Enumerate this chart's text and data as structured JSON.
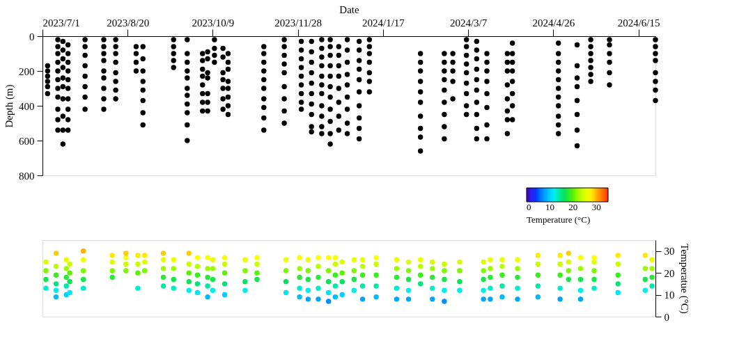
{
  "chart_data": [
    {
      "type": "scatter",
      "xlabel": "Date",
      "ylabel": "Depth (m)",
      "grid": false,
      "xlim": [
        "2023-07-01",
        "2024-06-25"
      ],
      "xticks": [
        {
          "value": "2023-07-01",
          "label": "2023/7/1"
        },
        {
          "value": "2023-08-20",
          "label": "2023/8/20"
        },
        {
          "value": "2023-10-09",
          "label": "2023/10/9"
        },
        {
          "value": "2023-11-28",
          "label": "2023/11/28"
        },
        {
          "value": "2024-01-17",
          "label": "2024/1/17"
        },
        {
          "value": "2024-03-07",
          "label": "2024/3/7"
        },
        {
          "value": "2024-04-26",
          "label": "2024/4/26"
        },
        {
          "value": "2024-06-15",
          "label": "2024/6/15"
        }
      ],
      "ylim": [
        800,
        0
      ],
      "yticks": [
        0,
        200,
        400,
        600,
        800
      ],
      "series": [
        {
          "color": "#000000",
          "x": [
            "2023-07-04",
            "2023-07-04",
            "2023-07-04",
            "2023-07-04",
            "2023-07-04",
            "2023-07-04",
            "2023-07-10",
            "2023-07-10",
            "2023-07-10",
            "2023-07-10",
            "2023-07-10",
            "2023-07-10",
            "2023-07-10",
            "2023-07-10",
            "2023-07-10",
            "2023-07-10",
            "2023-07-10",
            "2023-07-13",
            "2023-07-13",
            "2023-07-13",
            "2023-07-13",
            "2023-07-13",
            "2023-07-13",
            "2023-07-13",
            "2023-07-13",
            "2023-07-13",
            "2023-07-13",
            "2023-07-16",
            "2023-07-16",
            "2023-07-16",
            "2023-07-16",
            "2023-07-16",
            "2023-07-16",
            "2023-07-16",
            "2023-07-16",
            "2023-07-16",
            "2023-07-16",
            "2023-07-26",
            "2023-07-26",
            "2023-07-26",
            "2023-07-26",
            "2023-07-26",
            "2023-07-26",
            "2023-07-26",
            "2023-07-26",
            "2023-08-06",
            "2023-08-06",
            "2023-08-06",
            "2023-08-06",
            "2023-08-06",
            "2023-08-06",
            "2023-08-06",
            "2023-08-06",
            "2023-08-06",
            "2023-08-13",
            "2023-08-13",
            "2023-08-13",
            "2023-08-13",
            "2023-08-13",
            "2023-08-13",
            "2023-08-13",
            "2023-08-13",
            "2023-08-25",
            "2023-08-25",
            "2023-08-25",
            "2023-08-25",
            "2023-08-29",
            "2023-08-29",
            "2023-08-29",
            "2023-08-29",
            "2023-08-29",
            "2023-08-29",
            "2023-08-29",
            "2023-08-29",
            "2023-09-16",
            "2023-09-16",
            "2023-09-16",
            "2023-09-16",
            "2023-09-16",
            "2023-09-24",
            "2023-09-24",
            "2023-09-24",
            "2023-09-24",
            "2023-09-24",
            "2023-09-24",
            "2023-09-24",
            "2023-09-24",
            "2023-09-24",
            "2023-09-24",
            "2023-09-24",
            "2023-10-03",
            "2023-10-03",
            "2023-10-03",
            "2023-10-03",
            "2023-10-03",
            "2023-10-03",
            "2023-10-03",
            "2023-10-03",
            "2023-10-06",
            "2023-10-06",
            "2023-10-06",
            "2023-10-06",
            "2023-10-06",
            "2023-10-06",
            "2023-10-06",
            "2023-10-10",
            "2023-10-10",
            "2023-10-10",
            "2023-10-10",
            "2023-10-15",
            "2023-10-15",
            "2023-10-15",
            "2023-10-15",
            "2023-10-15",
            "2023-10-15",
            "2023-10-15",
            "2023-10-18",
            "2023-10-18",
            "2023-10-18",
            "2023-10-18",
            "2023-10-18",
            "2023-10-18",
            "2023-10-18",
            "2023-10-18",
            "2023-11-08",
            "2023-11-08",
            "2023-11-08",
            "2023-11-08",
            "2023-11-08",
            "2023-11-08",
            "2023-11-08",
            "2023-11-08",
            "2023-11-08",
            "2023-11-08",
            "2023-11-20",
            "2023-11-20",
            "2023-11-20",
            "2023-11-20",
            "2023-11-20",
            "2023-11-20",
            "2023-11-20",
            "2023-11-20",
            "2023-11-20",
            "2023-11-30",
            "2023-11-30",
            "2023-11-30",
            "2023-11-30",
            "2023-11-30",
            "2023-11-30",
            "2023-11-30",
            "2023-11-30",
            "2023-11-30",
            "2023-12-06",
            "2023-12-06",
            "2023-12-06",
            "2023-12-06",
            "2023-12-06",
            "2023-12-06",
            "2023-12-06",
            "2023-12-06",
            "2023-12-06",
            "2023-12-06",
            "2023-12-12",
            "2023-12-12",
            "2023-12-12",
            "2023-12-12",
            "2023-12-12",
            "2023-12-12",
            "2023-12-12",
            "2023-12-12",
            "2023-12-12",
            "2023-12-12",
            "2023-12-12",
            "2023-12-17",
            "2023-12-17",
            "2023-12-17",
            "2023-12-17",
            "2023-12-17",
            "2023-12-17",
            "2023-12-17",
            "2023-12-17",
            "2023-12-17",
            "2023-12-17",
            "2023-12-17",
            "2023-12-22",
            "2023-12-22",
            "2023-12-22",
            "2023-12-22",
            "2023-12-22",
            "2023-12-22",
            "2023-12-22",
            "2023-12-22",
            "2023-12-27",
            "2023-12-27",
            "2023-12-27",
            "2023-12-27",
            "2023-12-27",
            "2023-12-27",
            "2023-12-27",
            "2023-12-27",
            "2023-12-27",
            "2024-01-03",
            "2024-01-03",
            "2024-01-03",
            "2024-01-03",
            "2024-01-03",
            "2024-01-03",
            "2024-01-03",
            "2024-01-03",
            "2024-01-03",
            "2024-01-03",
            "2024-01-09",
            "2024-01-09",
            "2024-01-09",
            "2024-01-09",
            "2024-01-09",
            "2024-01-09",
            "2024-01-09",
            "2024-02-08",
            "2024-02-08",
            "2024-02-08",
            "2024-02-08",
            "2024-02-08",
            "2024-02-08",
            "2024-02-08",
            "2024-02-08",
            "2024-02-08",
            "2024-02-08",
            "2024-02-22",
            "2024-02-22",
            "2024-02-22",
            "2024-02-22",
            "2024-02-22",
            "2024-02-22",
            "2024-02-22",
            "2024-02-22",
            "2024-02-22",
            "2024-02-27",
            "2024-02-27",
            "2024-02-27",
            "2024-02-27",
            "2024-02-27",
            "2024-03-06",
            "2024-03-06",
            "2024-03-06",
            "2024-03-06",
            "2024-03-06",
            "2024-03-06",
            "2024-03-06",
            "2024-03-06",
            "2024-03-06",
            "2024-03-12",
            "2024-03-12",
            "2024-03-12",
            "2024-03-12",
            "2024-03-12",
            "2024-03-12",
            "2024-03-12",
            "2024-03-12",
            "2024-03-12",
            "2024-03-12",
            "2024-03-18",
            "2024-03-18",
            "2024-03-18",
            "2024-03-18",
            "2024-03-18",
            "2024-03-18",
            "2024-03-18",
            "2024-03-18",
            "2024-03-30",
            "2024-03-30",
            "2024-03-30",
            "2024-03-30",
            "2024-03-30",
            "2024-03-30",
            "2024-03-30",
            "2024-03-30",
            "2024-04-02",
            "2024-04-02",
            "2024-04-02",
            "2024-04-02",
            "2024-04-02",
            "2024-04-02",
            "2024-04-02",
            "2024-04-02",
            "2024-04-29",
            "2024-04-29",
            "2024-04-29",
            "2024-04-29",
            "2024-04-29",
            "2024-04-29",
            "2024-04-29",
            "2024-04-29",
            "2024-04-29",
            "2024-04-29",
            "2024-04-29",
            "2024-05-10",
            "2024-05-10",
            "2024-05-10",
            "2024-05-10",
            "2024-05-10",
            "2024-05-10",
            "2024-05-10",
            "2024-05-10",
            "2024-05-18",
            "2024-05-18",
            "2024-05-18",
            "2024-05-18",
            "2024-05-18",
            "2024-05-18",
            "2024-05-18",
            "2024-05-29",
            "2024-05-29",
            "2024-05-29",
            "2024-05-29",
            "2024-05-29",
            "2024-05-29",
            "2024-06-25",
            "2024-06-25",
            "2024-06-25",
            "2024-06-25",
            "2024-06-25",
            "2024-06-25",
            "2024-06-25",
            "2024-06-25"
          ],
          "values": [
            170,
            200,
            230,
            260,
            290,
            330,
            20,
            60,
            100,
            150,
            200,
            250,
            300,
            350,
            420,
            480,
            540,
            30,
            80,
            130,
            180,
            240,
            290,
            360,
            460,
            540,
            620,
            50,
            100,
            150,
            200,
            250,
            300,
            360,
            420,
            480,
            540,
            20,
            60,
            110,
            170,
            230,
            290,
            350,
            420,
            20,
            60,
            100,
            140,
            200,
            240,
            300,
            360,
            420,
            20,
            60,
            100,
            150,
            210,
            260,
            310,
            360,
            60,
            100,
            150,
            200,
            60,
            130,
            200,
            260,
            310,
            370,
            440,
            510,
            20,
            60,
            100,
            140,
            180,
            20,
            100,
            150,
            200,
            240,
            300,
            340,
            390,
            440,
            510,
            600,
            100,
            140,
            190,
            230,
            280,
            330,
            380,
            430,
            90,
            130,
            210,
            240,
            330,
            380,
            430,
            20,
            70,
            110,
            150,
            70,
            120,
            210,
            250,
            300,
            360,
            420,
            100,
            150,
            190,
            260,
            300,
            350,
            400,
            450,
            60,
            100,
            150,
            200,
            250,
            300,
            360,
            410,
            470,
            540,
            20,
            60,
            110,
            160,
            210,
            290,
            360,
            430,
            500,
            30,
            80,
            130,
            180,
            230,
            280,
            330,
            380,
            420,
            30,
            90,
            150,
            210,
            270,
            330,
            390,
            450,
            520,
            550,
            20,
            70,
            120,
            170,
            230,
            280,
            330,
            400,
            460,
            520,
            560,
            20,
            60,
            110,
            170,
            230,
            290,
            350,
            420,
            490,
            560,
            620,
            60,
            110,
            170,
            230,
            300,
            380,
            460,
            540,
            20,
            80,
            150,
            220,
            280,
            350,
            420,
            500,
            560,
            30,
            80,
            140,
            190,
            250,
            320,
            400,
            470,
            530,
            590,
            20,
            60,
            100,
            150,
            210,
            260,
            320,
            100,
            150,
            200,
            260,
            320,
            380,
            460,
            530,
            580,
            660,
            100,
            150,
            200,
            250,
            310,
            380,
            450,
            520,
            590,
            100,
            150,
            200,
            260,
            360,
            20,
            60,
            110,
            160,
            210,
            270,
            330,
            400,
            450,
            30,
            80,
            130,
            190,
            250,
            310,
            380,
            450,
            530,
            590,
            100,
            150,
            200,
            260,
            330,
            410,
            510,
            590,
            100,
            150,
            200,
            280,
            360,
            430,
            480,
            560,
            40,
            100,
            150,
            200,
            260,
            330,
            400,
            480,
            40,
            100,
            150,
            200,
            250,
            300,
            350,
            400,
            460,
            510,
            560,
            50,
            170,
            240,
            290,
            370,
            450,
            540,
            630,
            20,
            60,
            100,
            140,
            180,
            220,
            260,
            20,
            50,
            100,
            150,
            210,
            280,
            20,
            60,
            100,
            140,
            210,
            260,
            310,
            370
          ]
        }
      ]
    },
    {
      "type": "scatter",
      "ylabel": "Temperatue (°C)",
      "clabel": "Temperature (°C)",
      "grid": false,
      "tick_labels": "y",
      "xlim": [
        "2023-07-01",
        "2024-06-25"
      ],
      "ylim": [
        0,
        35
      ],
      "yticks": [
        0,
        10,
        20,
        30
      ],
      "clim": [
        0,
        35
      ],
      "cticks": [
        0,
        10,
        20,
        30
      ],
      "series": [
        {
          "x": [
            "2023-07-03",
            "2023-07-03",
            "2023-07-03",
            "2023-07-03",
            "2023-07-09",
            "2023-07-09",
            "2023-07-09",
            "2023-07-09",
            "2023-07-09",
            "2023-07-09",
            "2023-07-15",
            "2023-07-15",
            "2023-07-15",
            "2023-07-15",
            "2023-07-15",
            "2023-07-17",
            "2023-07-17",
            "2023-07-17",
            "2023-07-17",
            "2023-07-25",
            "2023-07-25",
            "2023-07-25",
            "2023-07-25",
            "2023-07-25",
            "2023-08-11",
            "2023-08-11",
            "2023-08-11",
            "2023-08-11",
            "2023-08-19",
            "2023-08-19",
            "2023-08-19",
            "2023-08-19",
            "2023-08-26",
            "2023-08-26",
            "2023-08-26",
            "2023-08-26",
            "2023-08-30",
            "2023-08-30",
            "2023-08-30",
            "2023-09-10",
            "2023-09-10",
            "2023-09-10",
            "2023-09-10",
            "2023-09-10",
            "2023-09-16",
            "2023-09-16",
            "2023-09-16",
            "2023-09-16",
            "2023-09-25",
            "2023-09-25",
            "2023-09-25",
            "2023-09-25",
            "2023-09-25",
            "2023-09-30",
            "2023-09-30",
            "2023-09-30",
            "2023-09-30",
            "2023-09-30",
            "2023-10-06",
            "2023-10-06",
            "2023-10-06",
            "2023-10-06",
            "2023-10-06",
            "2023-10-09",
            "2023-10-09",
            "2023-10-09",
            "2023-10-09",
            "2023-10-16",
            "2023-10-16",
            "2023-10-16",
            "2023-10-16",
            "2023-10-16",
            "2023-10-28",
            "2023-10-28",
            "2023-10-28",
            "2023-10-28",
            "2023-11-04",
            "2023-11-04",
            "2023-11-04",
            "2023-11-04",
            "2023-11-21",
            "2023-11-21",
            "2023-11-21",
            "2023-11-21",
            "2023-11-29",
            "2023-11-29",
            "2023-11-29",
            "2023-11-29",
            "2023-11-29",
            "2023-12-04",
            "2023-12-04",
            "2023-12-04",
            "2023-12-04",
            "2023-12-04",
            "2023-12-10",
            "2023-12-10",
            "2023-12-10",
            "2023-12-10",
            "2023-12-10",
            "2023-12-16",
            "2023-12-16",
            "2023-12-16",
            "2023-12-16",
            "2023-12-16",
            "2023-12-20",
            "2023-12-20",
            "2023-12-20",
            "2023-12-20",
            "2023-12-20",
            "2023-12-24",
            "2023-12-24",
            "2023-12-24",
            "2023-12-24",
            "2023-12-31",
            "2023-12-31",
            "2023-12-31",
            "2023-12-31",
            "2024-01-05",
            "2024-01-05",
            "2024-01-05",
            "2024-01-05",
            "2024-01-05",
            "2024-01-13",
            "2024-01-13",
            "2024-01-13",
            "2024-01-13",
            "2024-01-13",
            "2024-01-25",
            "2024-01-25",
            "2024-01-25",
            "2024-01-25",
            "2024-01-25",
            "2024-02-01",
            "2024-02-01",
            "2024-02-01",
            "2024-02-01",
            "2024-02-01",
            "2024-02-08",
            "2024-02-08",
            "2024-02-08",
            "2024-02-08",
            "2024-02-15",
            "2024-02-15",
            "2024-02-15",
            "2024-02-15",
            "2024-02-15",
            "2024-02-22",
            "2024-02-22",
            "2024-02-22",
            "2024-02-22",
            "2024-02-22",
            "2024-03-02",
            "2024-03-02",
            "2024-03-02",
            "2024-03-02",
            "2024-03-16",
            "2024-03-16",
            "2024-03-16",
            "2024-03-16",
            "2024-03-16",
            "2024-03-20",
            "2024-03-20",
            "2024-03-20",
            "2024-03-20",
            "2024-03-20",
            "2024-03-27",
            "2024-03-27",
            "2024-03-27",
            "2024-03-27",
            "2024-03-27",
            "2024-04-05",
            "2024-04-05",
            "2024-04-05",
            "2024-04-05",
            "2024-04-05",
            "2024-04-17",
            "2024-04-17",
            "2024-04-17",
            "2024-04-17",
            "2024-04-17",
            "2024-04-30",
            "2024-04-30",
            "2024-04-30",
            "2024-04-30",
            "2024-04-30",
            "2024-05-05",
            "2024-05-05",
            "2024-05-05",
            "2024-05-05",
            "2024-05-12",
            "2024-05-12",
            "2024-05-12",
            "2024-05-12",
            "2024-05-12",
            "2024-05-20",
            "2024-05-20",
            "2024-05-20",
            "2024-05-20",
            "2024-05-20",
            "2024-06-03",
            "2024-06-03",
            "2024-06-03",
            "2024-06-03",
            "2024-06-03",
            "2024-06-19",
            "2024-06-19",
            "2024-06-19",
            "2024-06-19",
            "2024-06-23",
            "2024-06-23",
            "2024-06-23",
            "2024-06-23"
          ],
          "values": [
            13,
            17,
            21,
            25,
            9,
            12,
            15,
            19,
            23,
            29,
            10,
            14,
            18,
            22,
            26,
            11,
            16,
            20,
            24,
            13,
            17,
            21,
            26,
            30,
            18,
            21,
            25,
            28,
            21,
            24,
            27,
            29,
            13,
            20,
            24,
            28,
            21,
            25,
            28,
            14,
            18,
            22,
            26,
            29,
            13,
            17,
            22,
            26,
            12,
            16,
            20,
            24,
            29,
            11,
            15,
            19,
            23,
            27,
            9,
            14,
            18,
            22,
            27,
            12,
            17,
            22,
            26,
            10,
            15,
            20,
            24,
            27,
            12,
            16,
            21,
            26,
            17,
            20,
            24,
            27,
            11,
            16,
            21,
            26,
            9,
            13,
            18,
            22,
            27,
            8,
            12,
            17,
            21,
            26,
            8,
            13,
            18,
            23,
            27,
            7,
            11,
            16,
            21,
            27,
            9,
            14,
            19,
            24,
            27,
            10,
            16,
            20,
            25,
            12,
            17,
            21,
            26,
            8,
            14,
            19,
            23,
            26,
            9,
            14,
            19,
            24,
            27,
            8,
            13,
            18,
            22,
            26,
            8,
            12,
            17,
            21,
            25,
            15,
            19,
            23,
            26,
            8,
            13,
            18,
            22,
            25,
            7,
            12,
            17,
            21,
            24,
            12,
            16,
            21,
            25,
            8,
            12,
            17,
            21,
            25,
            8,
            13,
            18,
            22,
            26,
            9,
            14,
            19,
            23,
            26,
            8,
            13,
            18,
            22,
            26,
            9,
            14,
            19,
            24,
            28,
            8,
            13,
            19,
            24,
            28,
            17,
            21,
            25,
            29,
            8,
            12,
            17,
            22,
            27,
            13,
            17,
            21,
            25,
            27,
            11,
            15,
            19,
            24,
            28,
            12,
            17,
            22,
            28,
            14,
            18,
            22,
            26
          ]
        }
      ]
    }
  ]
}
